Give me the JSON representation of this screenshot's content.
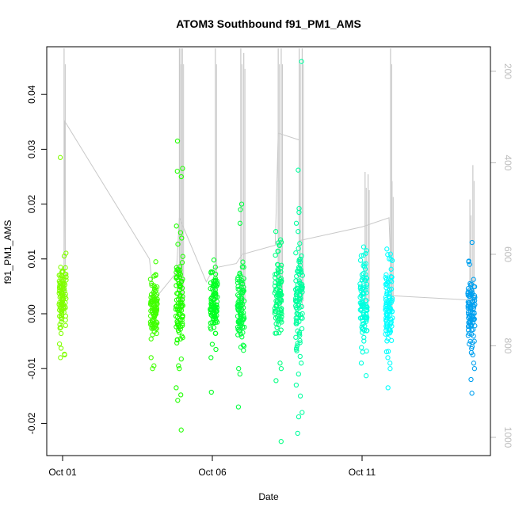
{
  "chart_data": {
    "type": "scatter",
    "title": "ATOM3 Southbound f91_PM1_AMS",
    "xlabel": "Date",
    "ylabel": "f91_PM1_AMS",
    "x_ticks": [
      "Oct 01",
      "Oct 06",
      "Oct 11"
    ],
    "x_range_days": [
      0,
      14.5
    ],
    "ylim": [
      -0.026,
      0.048
    ],
    "y_ticks": [
      -0.02,
      -0.01,
      0.0,
      0.01,
      0.02,
      0.03,
      0.04
    ],
    "y_tick_labels": [
      "-0.02",
      "-0.01",
      "0.00",
      "0.01",
      "0.02",
      "0.03",
      "0.04"
    ],
    "right_axis": {
      "label": "",
      "inverted": true,
      "ticks": [
        200,
        400,
        600,
        800,
        1000
      ],
      "color": "#bdbdbd",
      "description": "pressure trace"
    },
    "grid": false,
    "point_style": "open-circle",
    "clusters": [
      {
        "day": 0.0,
        "color": "#80ff00",
        "core": [
          -0.005,
          0.01
        ],
        "outliers": [
          0.0285,
          -0.0075,
          -0.008,
          -0.0055,
          0.0105
        ]
      },
      {
        "day": 3.05,
        "color": "#40ff00",
        "core": [
          -0.004,
          0.006
        ],
        "outliers": [
          0.0095,
          0.007,
          -0.008,
          -0.0095,
          -0.01,
          0.0025
        ]
      },
      {
        "day": 3.9,
        "color": "#20ff00",
        "core": [
          -0.007,
          0.012
        ],
        "outliers": [
          0.0315,
          0.0265,
          0.026,
          0.025,
          0.0148,
          0.0138,
          -0.0095,
          -0.01,
          -0.0135,
          -0.0148,
          -0.0158,
          -0.0212,
          0.016
        ]
      },
      {
        "day": 5.05,
        "color": "#00ff20",
        "core": [
          -0.004,
          0.008
        ],
        "outliers": [
          0.0098,
          0.0085,
          -0.0065,
          -0.008,
          -0.0143
        ]
      },
      {
        "day": 5.95,
        "color": "#00ff40",
        "core": [
          -0.006,
          0.008
        ],
        "outliers": [
          0.02,
          0.019,
          0.0165,
          -0.01,
          -0.011,
          -0.017,
          0.0085
        ]
      },
      {
        "day": 7.2,
        "color": "#00ff80",
        "core": [
          -0.006,
          0.011
        ],
        "outliers": [
          0.015,
          0.0135,
          0.0125,
          -0.009,
          -0.01,
          -0.0122,
          -0.0233
        ]
      },
      {
        "day": 7.9,
        "color": "#00ff9f",
        "core": [
          -0.008,
          0.013
        ],
        "outliers": [
          0.046,
          0.0262,
          0.0192,
          0.0185,
          0.0165,
          0.015,
          -0.009,
          -0.011,
          -0.013,
          -0.015,
          -0.018,
          -0.0188,
          -0.0218
        ]
      },
      {
        "day": 10.05,
        "color": "#00ffdf",
        "core": [
          -0.005,
          0.009
        ],
        "outliers": [
          0.0122,
          0.0115,
          0.011,
          -0.0068,
          -0.007,
          -0.009,
          -0.0113
        ]
      },
      {
        "day": 10.9,
        "color": "#00ffff",
        "core": [
          -0.006,
          0.009
        ],
        "outliers": [
          0.0118,
          0.0108,
          0.01,
          -0.008,
          -0.009,
          -0.01,
          -0.0135
        ]
      },
      {
        "day": 13.65,
        "color": "#00a0ef",
        "core": [
          -0.006,
          0.007
        ],
        "outliers": [
          0.013,
          0.0095,
          0.009,
          -0.0075,
          -0.009,
          -0.01,
          -0.012,
          -0.0145
        ]
      }
    ],
    "pressure_trace": {
      "color": "#c8c8c8",
      "points": [
        [
          0.0,
          690
        ],
        [
          0.05,
          640
        ],
        [
          0.08,
          310
        ],
        [
          2.9,
          610
        ],
        [
          3.05,
          700
        ],
        [
          3.8,
          640
        ],
        [
          3.9,
          520
        ],
        [
          4.8,
          660
        ],
        [
          5.05,
          630
        ],
        [
          5.8,
          620
        ],
        [
          6.0,
          600
        ],
        [
          7.1,
          580
        ],
        [
          7.2,
          335
        ],
        [
          7.9,
          350
        ],
        [
          7.9,
          570
        ],
        [
          10.0,
          540
        ],
        [
          10.9,
          520
        ],
        [
          10.95,
          610
        ],
        [
          10.9,
          690
        ],
        [
          13.65,
          700
        ]
      ],
      "spikes": [
        {
          "day": 0.05,
          "top": 150
        },
        {
          "day": 3.9,
          "top": 150
        },
        {
          "day": 3.95,
          "top": 150
        },
        {
          "day": 4.0,
          "top": 150
        },
        {
          "day": 5.1,
          "top": 150
        },
        {
          "day": 5.95,
          "top": 150
        },
        {
          "day": 6.05,
          "top": 160
        },
        {
          "day": 7.2,
          "top": 150
        },
        {
          "day": 7.3,
          "top": 150
        },
        {
          "day": 7.9,
          "top": 150
        },
        {
          "day": 8.0,
          "top": 150
        },
        {
          "day": 10.1,
          "top": 420
        },
        {
          "day": 10.2,
          "top": 425
        },
        {
          "day": 10.95,
          "top": 150
        },
        {
          "day": 11.0,
          "top": 440
        },
        {
          "day": 13.6,
          "top": 480
        },
        {
          "day": 13.7,
          "top": 405
        }
      ]
    }
  }
}
